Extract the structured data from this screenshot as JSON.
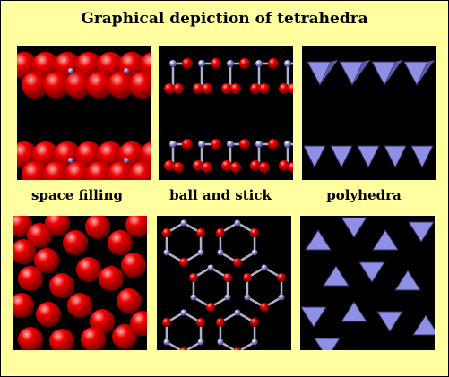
{
  "title": "Graphical depiction of tetrahedra",
  "captions": {
    "space_filling": "space filling",
    "ball_and_stick": "ball and stick",
    "polyhedra": "polyhedra"
  },
  "colors": {
    "background": "#ffffa0",
    "oxygen": "#ee0000",
    "silicon": "#8888cc",
    "polyhedron": "#8f8fe6",
    "bond": "#b0b0d0",
    "tile": "#000000"
  }
}
